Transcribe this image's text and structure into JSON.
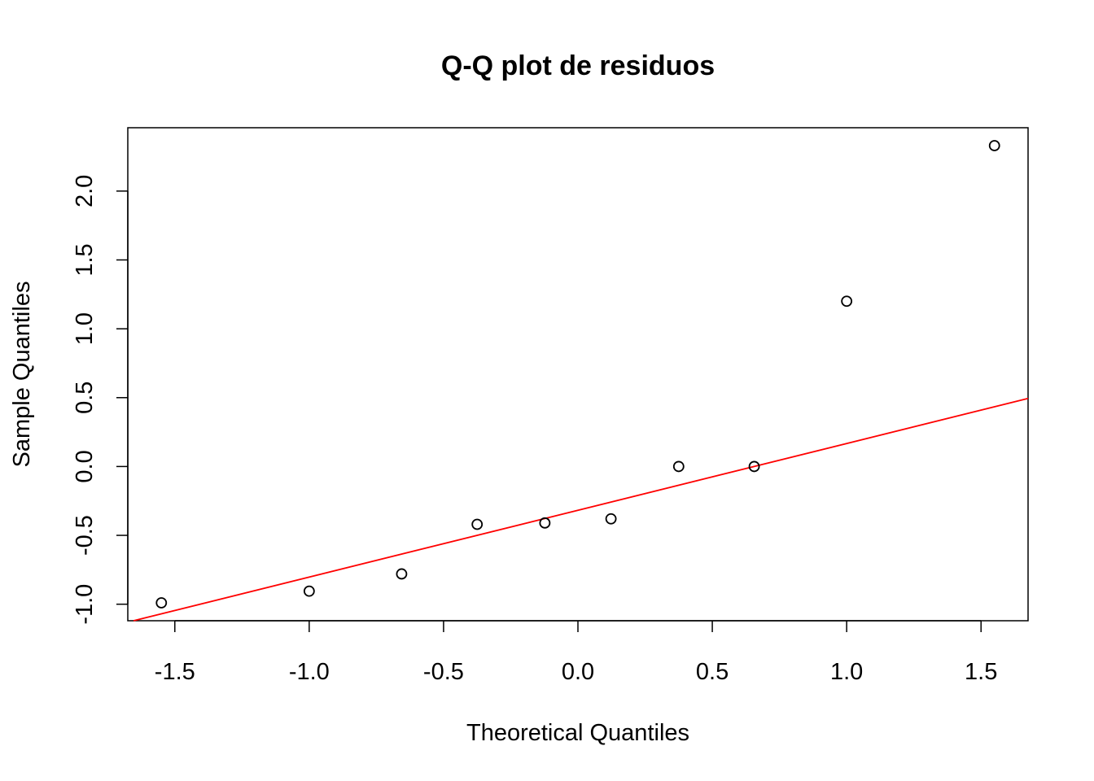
{
  "chart_data": {
    "type": "scatter",
    "title": "Q-Q plot de residuos",
    "xlabel": "Theoretical Quantiles",
    "ylabel": "Sample Quantiles",
    "xlim": [
      -1.675,
      1.675
    ],
    "ylim": [
      -1.12,
      2.46
    ],
    "xticks": [
      "-1.5",
      "-1.0",
      "-0.5",
      "0.0",
      "0.5",
      "1.0",
      "1.5"
    ],
    "yticks": [
      "-1.0",
      "-0.5",
      "0.0",
      "0.5",
      "1.0",
      "1.5",
      "2.0"
    ],
    "grid": false,
    "points": {
      "x": [
        -1.55,
        -1.0,
        -0.656,
        -0.375,
        -0.123,
        0.123,
        0.375,
        0.656,
        1.0,
        1.55
      ],
      "y": [
        -0.99,
        -0.905,
        -0.78,
        -0.42,
        -0.41,
        -0.38,
        0.0,
        0.0,
        1.2,
        2.33
      ]
    },
    "reference_line": {
      "slope": 0.485,
      "intercept": -0.318,
      "color": "#ff0000"
    },
    "point_color": "#000000"
  }
}
